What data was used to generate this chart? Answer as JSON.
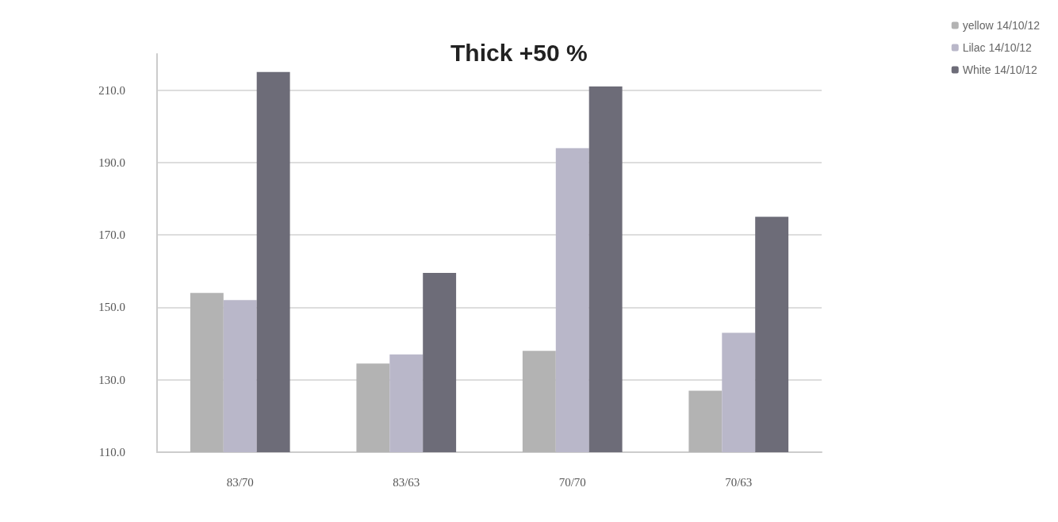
{
  "chart_data": {
    "type": "bar",
    "title": "Thick +50 %",
    "categories": [
      "83/70",
      "83/63",
      "70/70",
      "70/63"
    ],
    "series": [
      {
        "name": "yellow 14/10/12",
        "color": "#b3b3b3",
        "values": [
          154,
          134.5,
          138,
          127
        ]
      },
      {
        "name": "Lilac 14/10/12",
        "color": "#b9b7c9",
        "values": [
          152,
          137,
          194,
          143
        ]
      },
      {
        "name": "White 14/10/12",
        "color": "#6d6c78",
        "values": [
          215,
          159.5,
          211,
          175
        ]
      }
    ],
    "ylim": [
      110,
      220
    ],
    "yticks": [
      {
        "value": 110,
        "label": "110.0"
      },
      {
        "value": 130,
        "label": "130.0"
      },
      {
        "value": 150,
        "label": "150.0"
      },
      {
        "value": 170,
        "label": "170.0"
      },
      {
        "value": 190,
        "label": "190.0"
      },
      {
        "value": 210,
        "label": "210.0"
      }
    ],
    "grid": "y",
    "legend": "top right"
  }
}
